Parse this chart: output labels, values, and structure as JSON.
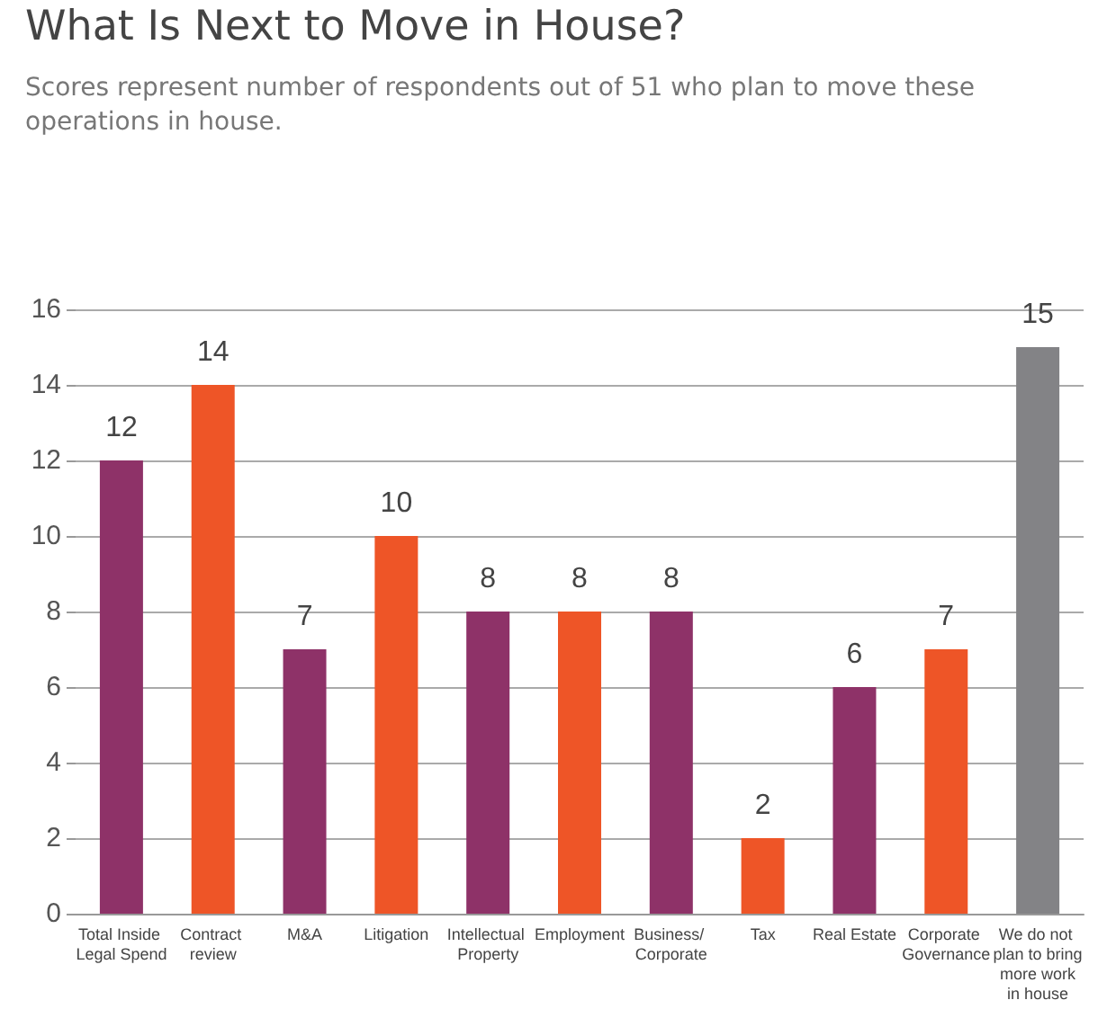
{
  "chart_data": {
    "type": "bar",
    "title": "What Is Next to Move in House?",
    "subtitle": "Scores represent number of respondents out of 51 who plan to move these operations in house.",
    "categories": [
      "Total Inside Legal Spend",
      "Contract review",
      "M&A",
      "Litigation",
      "Intellectual Property",
      "Employment",
      "Business/ Corporate",
      "Tax",
      "Real Estate",
      "Corporate Governance",
      "We do not plan to bring more work in house"
    ],
    "values": [
      12,
      14,
      7,
      10,
      8,
      8,
      8,
      2,
      6,
      7,
      15
    ],
    "colors": [
      "#8e3268",
      "#ee5527",
      "#8e3268",
      "#ee5527",
      "#8e3268",
      "#ee5527",
      "#8e3268",
      "#ee5527",
      "#8e3268",
      "#ee5527",
      "#838386"
    ],
    "ylim": [
      0,
      16
    ],
    "yticks": [
      0,
      2,
      4,
      6,
      8,
      10,
      12,
      14,
      16
    ],
    "grid": "y",
    "data_labels": true
  }
}
